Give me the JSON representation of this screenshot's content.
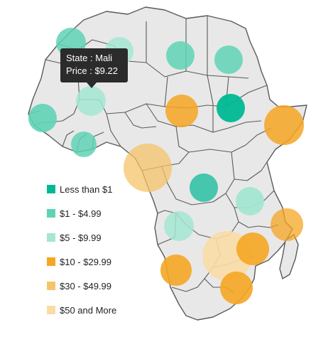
{
  "legend": [
    {
      "label": "Less than $1",
      "color": "#00b894"
    },
    {
      "label": "$1 - $4.99",
      "color": "#5fd3b5"
    },
    {
      "label": "$5 - $9.99",
      "color": "#a4e6d3"
    },
    {
      "label": "$10 - $29.99",
      "color": "#f5a623"
    },
    {
      "label": "$30 - $49.99",
      "color": "#f6c46a"
    },
    {
      "label": "$50 and More",
      "color": "#f9dca6"
    }
  ],
  "tooltip": {
    "state": "State : Mali",
    "price": "Price : $9.22"
  },
  "bubbles": [
    {
      "category": 1,
      "opacity": 0.85
    },
    {
      "category": 2,
      "opacity": 0.85
    },
    {
      "category": 1,
      "opacity": 0.85
    },
    {
      "category": 1,
      "opacity": 0.85
    },
    {
      "category": 2,
      "opacity": 0.85
    },
    {
      "category": 3,
      "opacity": 0.9
    },
    {
      "category": 0,
      "opacity": 0.95
    },
    {
      "category": 2,
      "opacity": 0.85
    },
    {
      "category": 1,
      "opacity": 0.85
    },
    {
      "category": 4,
      "opacity": 0.75
    },
    {
      "category": 5,
      "opacity": 0.7
    },
    {
      "category": 0,
      "opacity": 0.95
    },
    {
      "category": 2,
      "opacity": 0.85
    },
    {
      "category": 2,
      "opacity": 0.85
    },
    {
      "category": 3,
      "opacity": 0.9
    },
    {
      "category": 5,
      "opacity": 0.75
    },
    {
      "category": 3,
      "opacity": 0.9
    },
    {
      "category": 3,
      "opacity": 0.9
    },
    {
      "category": 3,
      "opacity": 0.9
    }
  ]
}
